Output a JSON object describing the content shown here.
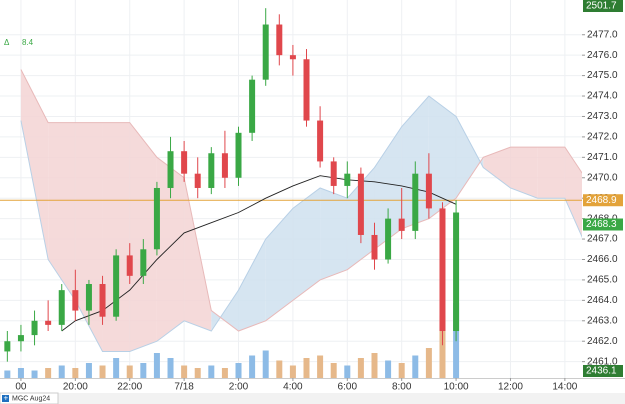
{
  "chart_data": {
    "type": "candlestick",
    "symbol": "MGC Aug24",
    "change_symbol": "Δ",
    "change_value": 8.4,
    "x": [
      17.5,
      18,
      18.5,
      19,
      19.5,
      20,
      20.5,
      21,
      21.5,
      22,
      22.5,
      23,
      23.5,
      24,
      24.5,
      25,
      25.5,
      26,
      26.5,
      27,
      27.5,
      28,
      28.5,
      29,
      29.5,
      30,
      30.5,
      31,
      31.5,
      32,
      32.5,
      33,
      33.5,
      34
    ],
    "open": [
      2461.5,
      2462.0,
      2462.3,
      2463.0,
      2462.8,
      2464.5,
      2463.5,
      2464.8,
      2463.2,
      2466.2,
      2465.2,
      2466.5,
      2469.5,
      2471.3,
      2470.2,
      2469.5,
      2471.2,
      2470.0,
      2472.2,
      2474.8,
      2477.5,
      2476.0,
      2475.8,
      2472.8,
      2470.8,
      2469.6,
      2470.2,
      2467.2,
      2466.0,
      2468.0,
      2467.4,
      2470.2,
      2468.5,
      2462.5
    ],
    "high": [
      2462.5,
      2462.8,
      2463.5,
      2464.0,
      2464.8,
      2465.5,
      2465.0,
      2465.2,
      2466.5,
      2466.8,
      2467.0,
      2469.8,
      2472.0,
      2471.8,
      2471.0,
      2471.5,
      2472.3,
      2472.5,
      2475.0,
      2478.3,
      2478.0,
      2476.5,
      2476.3,
      2473.5,
      2471.0,
      2470.8,
      2470.5,
      2467.8,
      2468.5,
      2469.5,
      2470.8,
      2471.2,
      2468.8,
      2468.9
    ],
    "low": [
      2461.0,
      2461.5,
      2461.8,
      2462.5,
      2462.5,
      2463.0,
      2462.8,
      2462.8,
      2463.0,
      2464.8,
      2464.8,
      2466.2,
      2469.0,
      2469.8,
      2469.0,
      2469.2,
      2469.5,
      2469.6,
      2471.8,
      2474.5,
      2475.5,
      2475.0,
      2472.5,
      2470.5,
      2469.2,
      2469.0,
      2466.8,
      2465.5,
      2465.8,
      2467.0,
      2467.0,
      2468.0,
      2461.8,
      2462.0
    ],
    "close": [
      2462.0,
      2462.3,
      2463.0,
      2462.8,
      2464.5,
      2463.5,
      2464.8,
      2463.2,
      2466.2,
      2465.2,
      2466.5,
      2469.5,
      2471.3,
      2470.2,
      2469.5,
      2471.2,
      2470.0,
      2472.2,
      2474.8,
      2477.5,
      2476.0,
      2475.8,
      2472.8,
      2470.8,
      2469.6,
      2470.2,
      2467.2,
      2466.0,
      2468.0,
      2467.4,
      2470.2,
      2468.5,
      2462.5,
      2468.3
    ],
    "volume": [
      3,
      4,
      3,
      4,
      5,
      4,
      6,
      5,
      8,
      5,
      6,
      10,
      8,
      5,
      4,
      5,
      4,
      6,
      9,
      11,
      7,
      5,
      8,
      9,
      6,
      5,
      8,
      10,
      7,
      6,
      9,
      12,
      25,
      30
    ],
    "up_color": "#3aa845",
    "down_color": "#e0474c",
    "volume_up_color": "#8dbbe6",
    "volume_down_color": "#e6b88a",
    "cloud_x": [
      18,
      19,
      20,
      21,
      22,
      23,
      24,
      25,
      26,
      27,
      28,
      29,
      30,
      31,
      32,
      33,
      34,
      35,
      36,
      37,
      38,
      39
    ],
    "span_a": [
      2472.8,
      2466,
      2464,
      2461.5,
      2461.5,
      2462,
      2463,
      2462.5,
      2464.5,
      2467,
      2468.5,
      2469.5,
      2469,
      2470.5,
      2472.5,
      2474,
      2473,
      2470.5,
      2469.5,
      2469,
      2469,
      2466
    ],
    "span_b": [
      2475.3,
      2472.7,
      2472.7,
      2472.7,
      2472.7,
      2471,
      2470,
      2463.5,
      2462.5,
      2463,
      2464,
      2465,
      2465.5,
      2466.5,
      2467.5,
      2468,
      2469,
      2471,
      2471.5,
      2471.5,
      2471.5,
      2469.5
    ],
    "cloud_up_color": "#cfe0ef",
    "cloud_down_color": "#f3d4d4",
    "ma_x": [
      19.5,
      20,
      21,
      22,
      23,
      24,
      25,
      26,
      27,
      28,
      29,
      30,
      31,
      32,
      33,
      34
    ],
    "ma": [
      2462.5,
      2463,
      2463.5,
      2464.5,
      2466,
      2467.3,
      2467.8,
      2468.3,
      2469,
      2469.6,
      2470.1,
      2469.9,
      2469.8,
      2469.6,
      2469.3,
      2468.7
    ],
    "ma_color": "#222222",
    "level": 2468.9,
    "level_color": "#e3a33a",
    "top_label": 2501.7,
    "bottom_label": 2436.1,
    "edge_label_color": "#2e7d32",
    "xlim": [
      17.23,
      38.63
    ],
    "xticks": [
      {
        "value": 18,
        "label": "00"
      },
      {
        "value": 20,
        "label": "20:00"
      },
      {
        "value": 22,
        "label": "22:00"
      },
      {
        "value": 24,
        "label": "7/18"
      },
      {
        "value": 26,
        "label": "2:00"
      },
      {
        "value": 28,
        "label": "4:00"
      },
      {
        "value": 30,
        "label": "6:00"
      },
      {
        "value": 32,
        "label": "8:00"
      },
      {
        "value": 34,
        "label": "10:00"
      },
      {
        "value": 36,
        "label": "12:00"
      },
      {
        "value": 38,
        "label": "14:00"
      }
    ],
    "ylim": [
      2460.2,
      2478.7
    ],
    "yticks": [
      {
        "value": 2461,
        "label": "2461.0"
      },
      {
        "value": 2462,
        "label": "2462.0"
      },
      {
        "value": 2463,
        "label": "2463.0"
      },
      {
        "value": 2464,
        "label": "2464.0"
      },
      {
        "value": 2465,
        "label": "2465.0"
      },
      {
        "value": 2466,
        "label": "2466.0"
      },
      {
        "value": 2467,
        "label": "2467.0"
      },
      {
        "value": 2468,
        "label": "2468.0"
      },
      {
        "value": 2469,
        "label": "2469.0"
      },
      {
        "value": 2470,
        "label": "2470.0"
      },
      {
        "value": 2471,
        "label": "2471.0"
      },
      {
        "value": 2472,
        "label": "2472.0"
      },
      {
        "value": 2473,
        "label": "2473.0"
      },
      {
        "value": 2474,
        "label": "2474.0"
      },
      {
        "value": 2475,
        "label": "2475.0"
      },
      {
        "value": 2476,
        "label": "2476.0"
      },
      {
        "value": 2477,
        "label": "2477.0"
      }
    ],
    "grid": true
  }
}
